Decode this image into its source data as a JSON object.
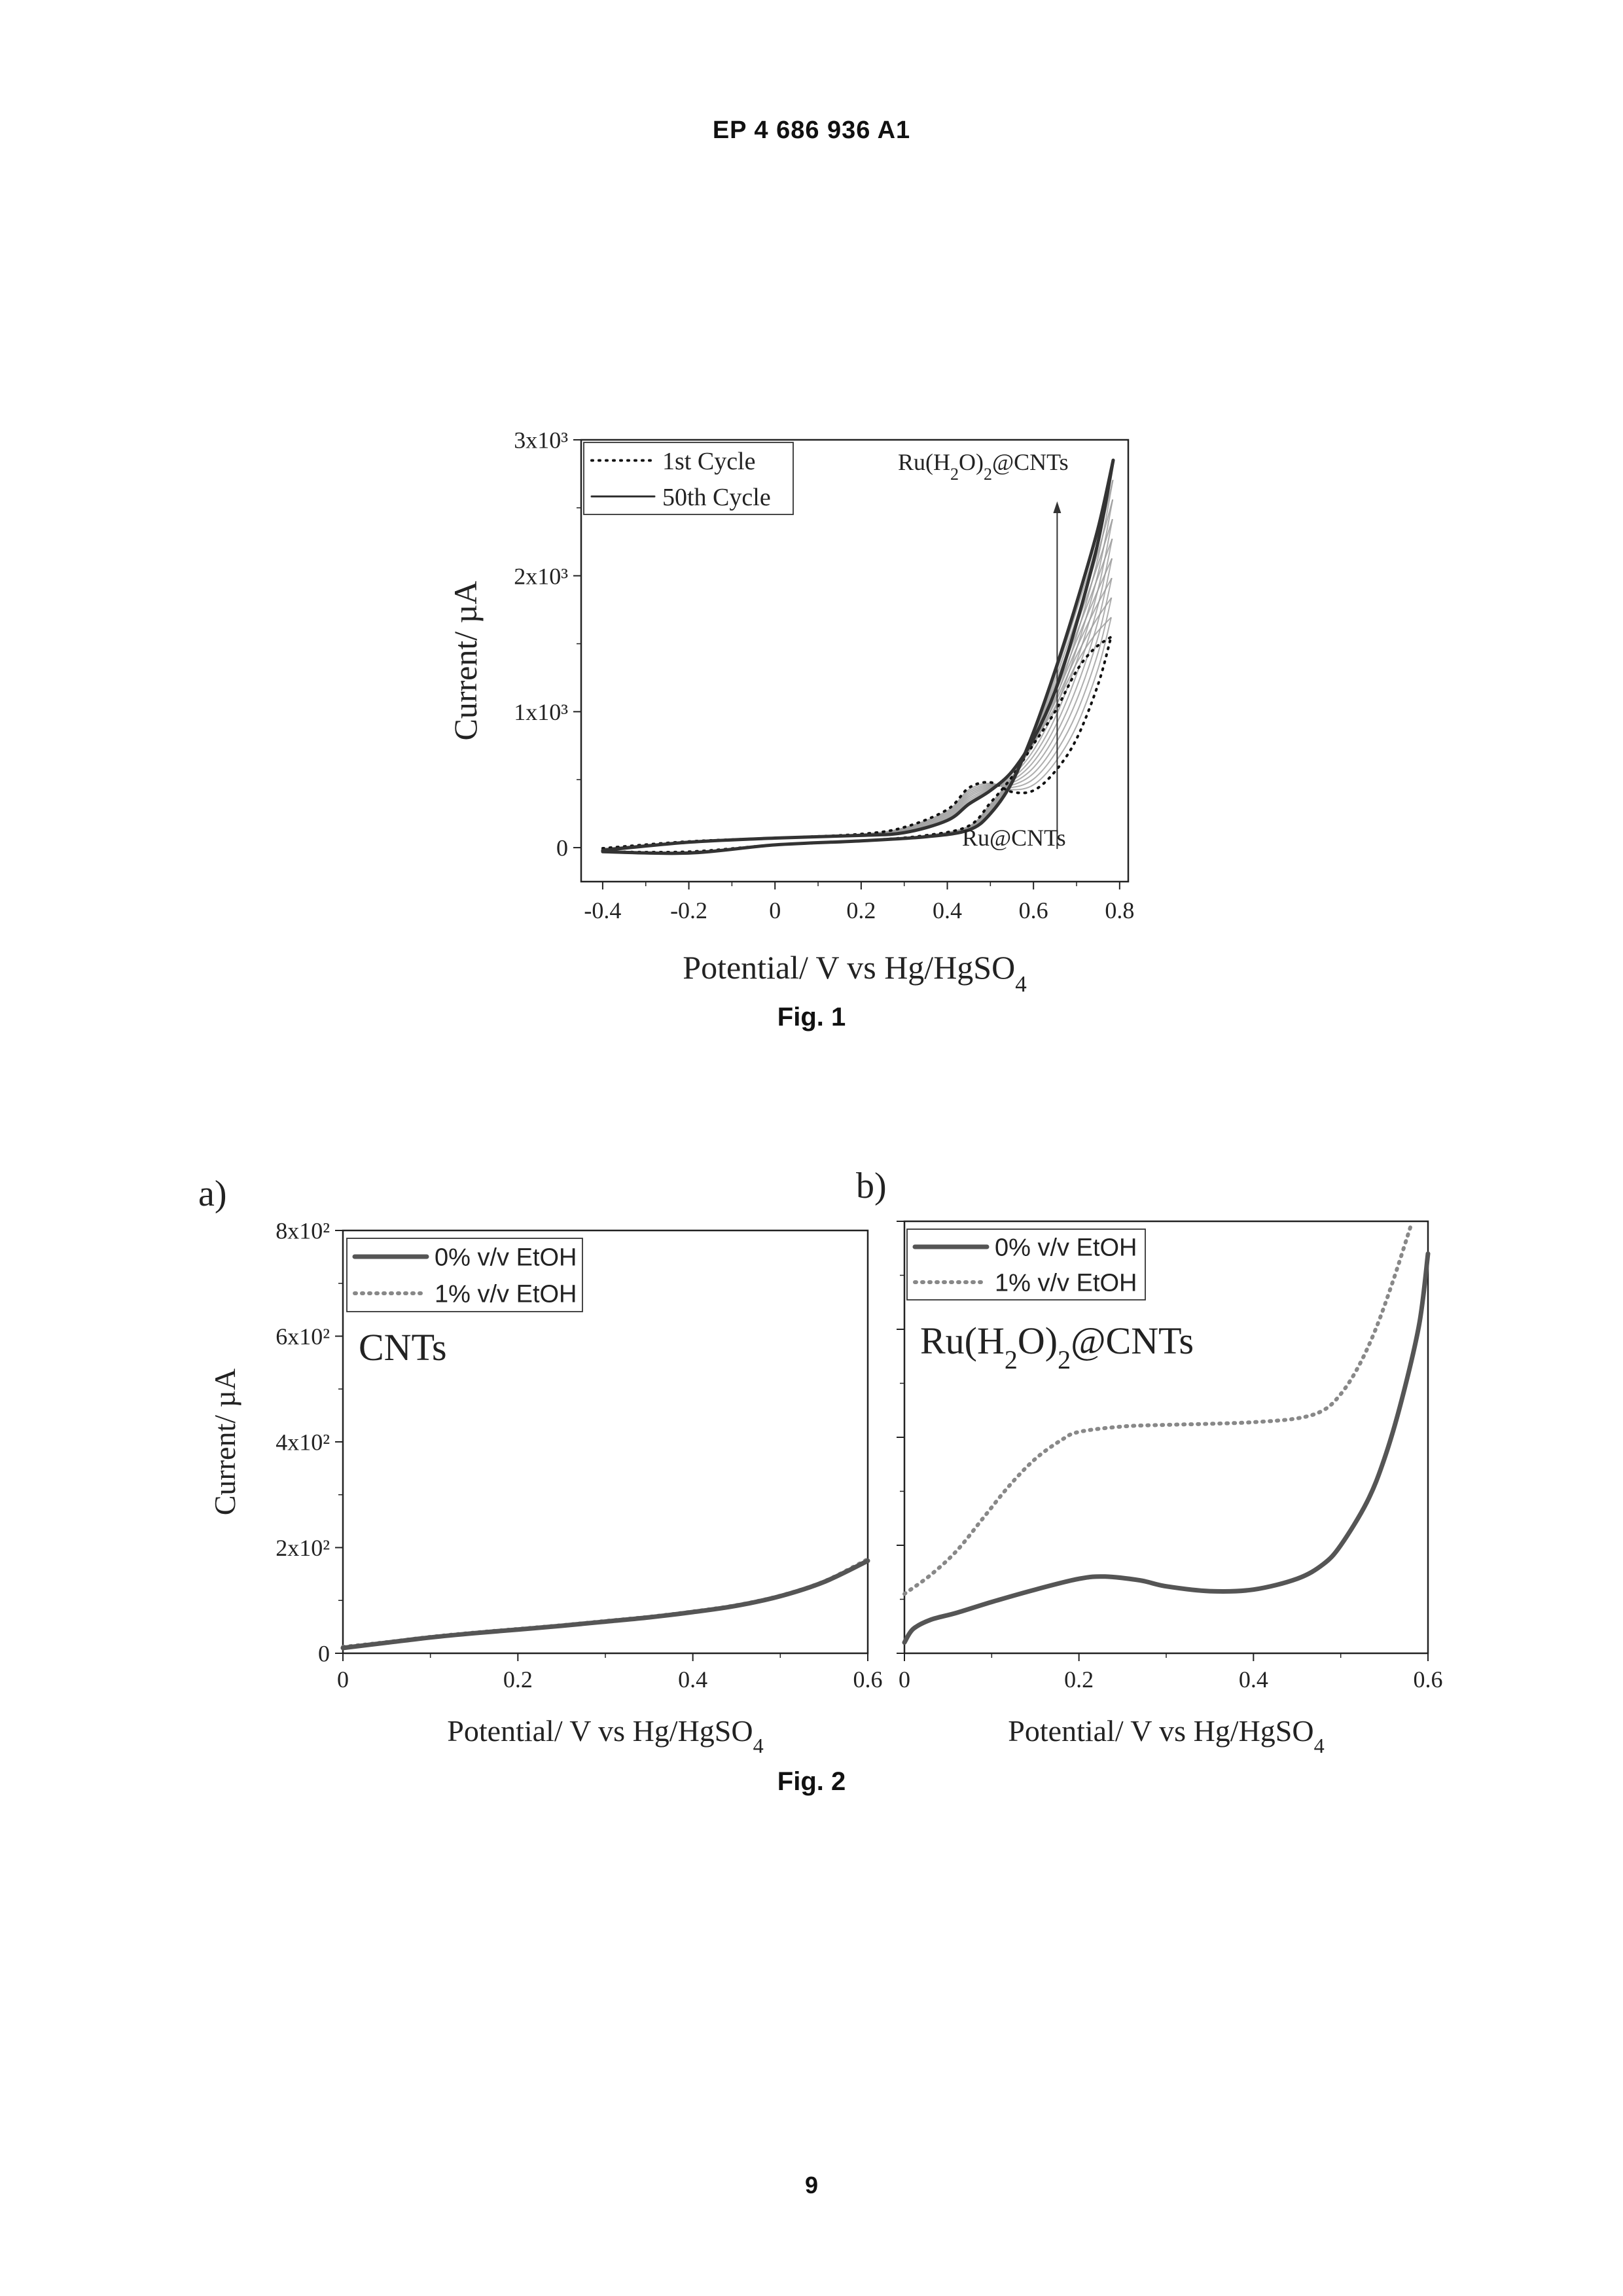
{
  "document": {
    "header": "EP 4 686 936 A1",
    "fig1_caption": "Fig. 1",
    "fig2_caption": "Fig. 2",
    "page_number": "9"
  },
  "chart_data": [
    {
      "id": "fig1",
      "type": "line",
      "xlabel": "Potential/ V vs Hg/HgSO4",
      "ylabel": "Current/ µA",
      "xlim": [
        -0.45,
        0.82
      ],
      "ylim": [
        -250,
        3000
      ],
      "xticks": [
        -0.4,
        -0.2,
        0,
        0.2,
        0.4,
        0.6,
        0.8
      ],
      "xtick_labels": [
        "-0.4",
        "-0.2",
        "0",
        "0.2",
        "0.4",
        "0.6",
        "0.8"
      ],
      "yticks": [
        0,
        1000,
        2000,
        3000
      ],
      "ytick_labels": [
        "0",
        "1x10³",
        "2x10³",
        "3x10³"
      ],
      "legend_position": "top-left",
      "annotations": [
        "Ru(H2O)2@CNTs",
        "Ru@CNTs"
      ],
      "series": [
        {
          "name": "1st Cycle",
          "style": "dotted",
          "forward": [
            [
              -0.4,
              -5
            ],
            [
              -0.2,
              45
            ],
            [
              0,
              70
            ],
            [
              0.2,
              100
            ],
            [
              0.3,
              150
            ],
            [
              0.4,
              280
            ],
            [
              0.45,
              440
            ],
            [
              0.5,
              480
            ],
            [
              0.55,
              410
            ],
            [
              0.6,
              420
            ],
            [
              0.65,
              560
            ],
            [
              0.7,
              800
            ],
            [
              0.75,
              1200
            ],
            [
              0.78,
              1550
            ]
          ],
          "backward": [
            [
              -0.4,
              -30
            ],
            [
              -0.2,
              -30
            ],
            [
              0,
              20
            ],
            [
              0.2,
              50
            ],
            [
              0.35,
              90
            ],
            [
              0.45,
              160
            ],
            [
              0.5,
              330
            ],
            [
              0.55,
              520
            ],
            [
              0.6,
              760
            ],
            [
              0.65,
              1000
            ],
            [
              0.7,
              1300
            ],
            [
              0.74,
              1460
            ],
            [
              0.78,
              1550
            ]
          ]
        },
        {
          "name": "50th Cycle",
          "style": "solid",
          "forward": [
            [
              -0.4,
              -20
            ],
            [
              -0.2,
              40
            ],
            [
              0,
              70
            ],
            [
              0.2,
              90
            ],
            [
              0.3,
              110
            ],
            [
              0.4,
              200
            ],
            [
              0.45,
              320
            ],
            [
              0.5,
              420
            ],
            [
              0.55,
              560
            ],
            [
              0.6,
              800
            ],
            [
              0.65,
              1150
            ],
            [
              0.7,
              1650
            ],
            [
              0.75,
              2250
            ],
            [
              0.785,
              2850
            ]
          ],
          "backward": [
            [
              -0.4,
              -30
            ],
            [
              -0.2,
              -40
            ],
            [
              0,
              20
            ],
            [
              0.2,
              50
            ],
            [
              0.35,
              80
            ],
            [
              0.45,
              130
            ],
            [
              0.5,
              250
            ],
            [
              0.55,
              480
            ],
            [
              0.6,
              850
            ],
            [
              0.65,
              1300
            ],
            [
              0.7,
              1800
            ],
            [
              0.75,
              2350
            ],
            [
              0.785,
              2850
            ]
          ]
        }
      ]
    },
    {
      "id": "fig2a",
      "type": "line",
      "panel_label": "a)",
      "inset_label": "CNTs",
      "xlabel": "Potential/ V vs Hg/HgSO4",
      "ylabel": "Current/ µA",
      "xlim": [
        0,
        0.6
      ],
      "ylim": [
        0,
        800
      ],
      "xticks": [
        0,
        0.2,
        0.4,
        0.6
      ],
      "xtick_labels": [
        "0",
        "0.2",
        "0.4",
        "0.6"
      ],
      "yticks": [
        0,
        200,
        400,
        600,
        800
      ],
      "ytick_labels": [
        "0",
        "2x10²",
        "4x10²",
        "6x10²",
        "8x10²"
      ],
      "legend_position": "top-left",
      "series": [
        {
          "name": "0% v/v EtOH",
          "style": "solid",
          "points": [
            [
              0,
              10
            ],
            [
              0.05,
              20
            ],
            [
              0.1,
              30
            ],
            [
              0.15,
              38
            ],
            [
              0.2,
              45
            ],
            [
              0.25,
              52
            ],
            [
              0.3,
              60
            ],
            [
              0.35,
              68
            ],
            [
              0.4,
              78
            ],
            [
              0.45,
              90
            ],
            [
              0.5,
              108
            ],
            [
              0.55,
              135
            ],
            [
              0.6,
              175
            ]
          ]
        },
        {
          "name": "1% v/v EtOH",
          "style": "dotted",
          "points": [
            [
              0,
              12
            ],
            [
              0.05,
              21
            ],
            [
              0.1,
              31
            ],
            [
              0.15,
              39
            ],
            [
              0.2,
              46
            ],
            [
              0.25,
              53
            ],
            [
              0.3,
              61
            ],
            [
              0.35,
              69
            ],
            [
              0.4,
              79
            ],
            [
              0.45,
              91
            ],
            [
              0.5,
              109
            ],
            [
              0.55,
              136
            ],
            [
              0.6,
              178
            ]
          ]
        }
      ]
    },
    {
      "id": "fig2b",
      "type": "line",
      "panel_label": "b)",
      "inset_label": "Ru(H2O)2@CNTs",
      "xlabel": "Potential/ V vs Hg/HgSO4",
      "ylabel": "",
      "xlim": [
        0,
        0.6
      ],
      "ylim": [
        0,
        800
      ],
      "xticks": [
        0,
        0.2,
        0.4,
        0.6
      ],
      "xtick_labels": [
        "0",
        "0.2",
        "0.4",
        "0.6"
      ],
      "yticks": [
        0,
        200,
        400,
        600,
        800
      ],
      "ytick_labels": [],
      "legend_position": "top-left",
      "series": [
        {
          "name": "0% v/v EtOH",
          "style": "solid",
          "points": [
            [
              0,
              20
            ],
            [
              0.01,
              45
            ],
            [
              0.03,
              62
            ],
            [
              0.06,
              75
            ],
            [
              0.1,
              95
            ],
            [
              0.15,
              118
            ],
            [
              0.2,
              138
            ],
            [
              0.23,
              142
            ],
            [
              0.27,
              135
            ],
            [
              0.3,
              124
            ],
            [
              0.35,
              115
            ],
            [
              0.4,
              118
            ],
            [
              0.45,
              138
            ],
            [
              0.48,
              165
            ],
            [
              0.5,
              200
            ],
            [
              0.53,
              280
            ],
            [
              0.55,
              360
            ],
            [
              0.57,
              470
            ],
            [
              0.59,
              610
            ],
            [
              0.6,
              740
            ]
          ]
        },
        {
          "name": "1% v/v EtOH",
          "style": "dotted",
          "points": [
            [
              0,
              110
            ],
            [
              0.03,
              145
            ],
            [
              0.06,
              190
            ],
            [
              0.09,
              250
            ],
            [
              0.12,
              310
            ],
            [
              0.15,
              360
            ],
            [
              0.18,
              395
            ],
            [
              0.2,
              410
            ],
            [
              0.25,
              420
            ],
            [
              0.3,
              423
            ],
            [
              0.35,
              425
            ],
            [
              0.4,
              428
            ],
            [
              0.45,
              435
            ],
            [
              0.48,
              450
            ],
            [
              0.5,
              480
            ],
            [
              0.52,
              530
            ],
            [
              0.54,
              600
            ],
            [
              0.56,
              690
            ],
            [
              0.58,
              790
            ]
          ]
        }
      ]
    }
  ]
}
